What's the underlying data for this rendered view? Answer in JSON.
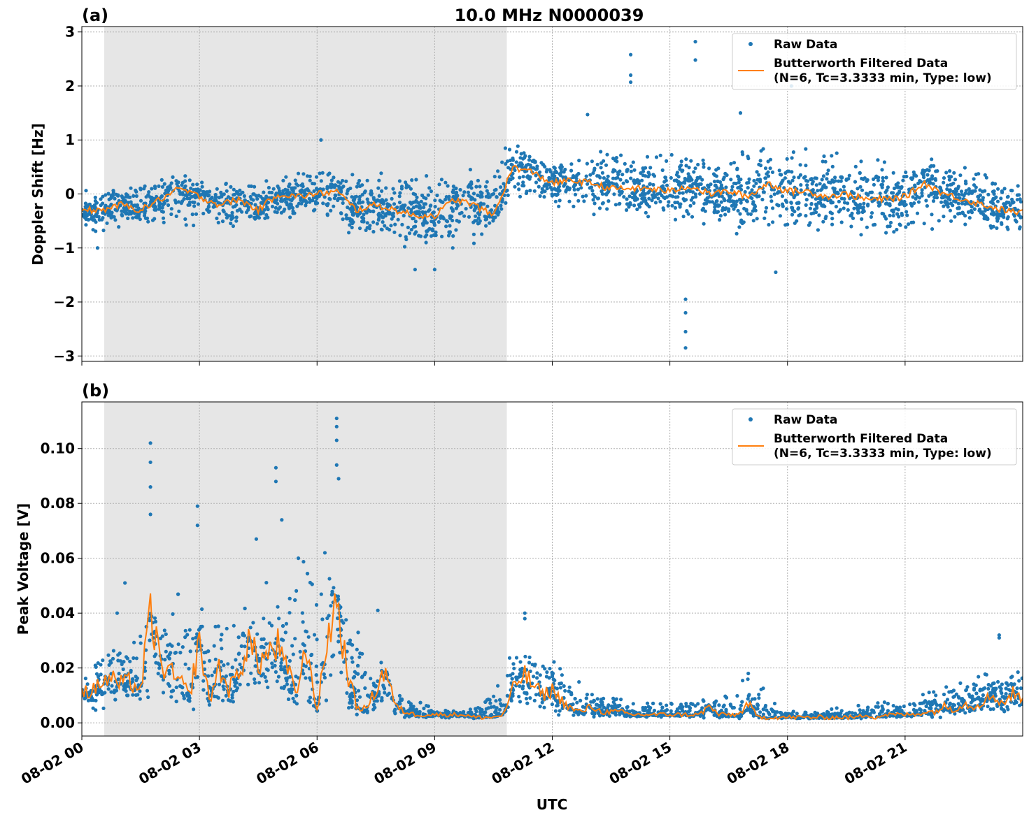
{
  "chart_data": [
    {
      "type": "scatter",
      "panel_label": "(a)",
      "title": "10.0 MHz N0000039",
      "xlabel": "",
      "ylabel": "Doppler Shift [Hz]",
      "ylim": [
        -3.1,
        3.1
      ],
      "yticks": [
        -3,
        -2,
        -1,
        0,
        1,
        2,
        3
      ],
      "ytick_labels": [
        "−3",
        "−2",
        "−1",
        "0",
        "1",
        "2",
        "3"
      ],
      "xlim_hours": [
        0,
        24
      ],
      "grid": true,
      "legend_position": "top-right",
      "shaded_interval_utc": [
        "08-02 00:34",
        "08-02 10:50"
      ],
      "shaded_interval_hours": [
        0.57,
        10.84
      ],
      "colors": {
        "raw": "#1f77b4",
        "filtered": "#ff7f0e",
        "shade": "#e6e6e6"
      },
      "legend": {
        "raw": "Raw Data",
        "filtered_line1": "Butterworth Filtered Data",
        "filtered_line2": "(N=6, Tc=3.3333 min, Type: low)"
      },
      "filtered_step_hours": 0.5,
      "filtered": [
        -0.3,
        -0.3,
        -0.2,
        -0.3,
        -0.1,
        0.1,
        -0.05,
        -0.2,
        -0.1,
        -0.3,
        0.0,
        -0.05,
        0.0,
        0.05,
        -0.3,
        -0.2,
        -0.3,
        -0.4,
        -0.4,
        -0.1,
        -0.2,
        -0.4,
        0.5,
        0.4,
        0.2,
        0.25,
        0.2,
        0.1,
        0.1,
        0.1,
        0.05,
        0.15,
        0.0,
        0.05,
        -0.05,
        0.2,
        0.05,
        0.05,
        -0.05,
        0.0,
        -0.1,
        -0.1,
        -0.05,
        0.2,
        0.0,
        -0.1,
        -0.2,
        -0.3,
        -0.35
      ],
      "raw_envelope_step_hours": 1,
      "raw_low": [
        -0.7,
        -0.7,
        -0.6,
        -0.6,
        -0.7,
        -0.6,
        -0.4,
        -0.9,
        -1.0,
        -1.1,
        -1.0,
        -0.3,
        -0.2,
        -0.4,
        -0.5,
        -0.6,
        -0.6,
        -0.8,
        -0.8,
        -0.7,
        -0.8,
        -0.8,
        -0.6,
        -0.7,
        -0.8
      ],
      "raw_high": [
        0.1,
        0.2,
        0.4,
        0.4,
        0.2,
        0.3,
        0.5,
        0.4,
        0.4,
        0.4,
        0.5,
        1.0,
        0.6,
        0.8,
        0.8,
        0.8,
        0.8,
        0.9,
        0.9,
        0.8,
        0.8,
        0.8,
        0.6,
        0.5,
        0.3
      ],
      "raw_outliers": [
        [
          14.0,
          2.58
        ],
        [
          14.0,
          2.2
        ],
        [
          14.0,
          2.07
        ],
        [
          15.65,
          2.82
        ],
        [
          15.65,
          2.48
        ],
        [
          15.4,
          -2.85
        ],
        [
          15.4,
          -2.55
        ],
        [
          15.4,
          -1.95
        ],
        [
          15.4,
          -2.2
        ],
        [
          18.1,
          2.0
        ],
        [
          6.1,
          1.0
        ],
        [
          17.7,
          -1.45
        ],
        [
          8.5,
          -1.4
        ],
        [
          9.0,
          -1.4
        ],
        [
          0.4,
          -1.0
        ],
        [
          12.9,
          1.47
        ],
        [
          16.8,
          1.5
        ]
      ]
    },
    {
      "type": "scatter",
      "panel_label": "(b)",
      "xlabel": "UTC",
      "ylabel": "Peak Voltage [V]",
      "ylim": [
        -0.0048,
        0.117
      ],
      "yticks": [
        0,
        0.02,
        0.04,
        0.06,
        0.08,
        0.1
      ],
      "ytick_labels": [
        "0.00",
        "0.02",
        "0.04",
        "0.06",
        "0.08",
        "0.10"
      ],
      "xlim_hours": [
        0,
        24
      ],
      "xticks_hours": [
        0,
        3,
        6,
        9,
        12,
        15,
        18,
        21
      ],
      "xtick_labels": [
        "08-02 00",
        "08-02 03",
        "08-02 06",
        "08-02 09",
        "08-02 12",
        "08-02 15",
        "08-02 18",
        "08-02 21"
      ],
      "grid": true,
      "legend_position": "top-right",
      "shaded_interval_hours": [
        0.57,
        10.84
      ],
      "legend": {
        "raw": "Raw Data",
        "filtered_line1": "Butterworth Filtered Data",
        "filtered_line2": "(N=6, Tc=3.3333 min, Type: low)"
      },
      "filtered_step_hours": 0.25,
      "filtered": [
        0.012,
        0.011,
        0.015,
        0.016,
        0.014,
        0.015,
        0.012,
        0.04,
        0.022,
        0.018,
        0.015,
        0.01,
        0.03,
        0.008,
        0.02,
        0.012,
        0.018,
        0.03,
        0.022,
        0.025,
        0.028,
        0.018,
        0.012,
        0.028,
        0.004,
        0.03,
        0.045,
        0.02,
        0.006,
        0.005,
        0.012,
        0.02,
        0.006,
        0.004,
        0.003,
        0.003,
        0.003,
        0.003,
        0.003,
        0.003,
        0.002,
        0.002,
        0.002,
        0.003,
        0.012,
        0.018,
        0.014,
        0.01,
        0.012,
        0.008,
        0.005,
        0.004,
        0.006,
        0.004,
        0.004,
        0.004,
        0.003,
        0.003,
        0.003,
        0.003,
        0.003,
        0.003,
        0.003,
        0.003,
        0.006,
        0.003,
        0.003,
        0.003,
        0.007,
        0.002,
        0.002,
        0.002,
        0.002,
        0.002,
        0.002,
        0.002,
        0.002,
        0.002,
        0.002,
        0.002,
        0.003,
        0.002,
        0.003,
        0.003,
        0.003,
        0.003,
        0.004,
        0.004,
        0.006,
        0.005,
        0.007,
        0.006,
        0.008,
        0.01,
        0.007,
        0.011,
        0.008
      ],
      "raw_envelope_step_hours": 1,
      "raw_low": [
        0.004,
        0.005,
        0.005,
        0.004,
        0.004,
        0.005,
        0.004,
        0.002,
        0.002,
        0.0015,
        0.0015,
        0.004,
        0.003,
        0.002,
        0.002,
        0.002,
        0.0015,
        0.0015,
        0.0015,
        0.0015,
        0.0015,
        0.002,
        0.002,
        0.003,
        0.004
      ],
      "raw_high": [
        0.026,
        0.032,
        0.045,
        0.05,
        0.04,
        0.058,
        0.065,
        0.04,
        0.012,
        0.005,
        0.005,
        0.03,
        0.026,
        0.012,
        0.008,
        0.007,
        0.01,
        0.018,
        0.005,
        0.005,
        0.007,
        0.01,
        0.015,
        0.02,
        0.022
      ],
      "raw_outliers": [
        [
          1.75,
          0.102
        ],
        [
          1.75,
          0.095
        ],
        [
          1.75,
          0.086
        ],
        [
          1.75,
          0.076
        ],
        [
          2.95,
          0.079
        ],
        [
          2.95,
          0.072
        ],
        [
          4.95,
          0.093
        ],
        [
          4.95,
          0.088
        ],
        [
          5.1,
          0.074
        ],
        [
          4.45,
          0.067
        ],
        [
          6.5,
          0.111
        ],
        [
          6.5,
          0.108
        ],
        [
          6.5,
          0.103
        ],
        [
          6.5,
          0.094
        ],
        [
          6.55,
          0.089
        ],
        [
          6.2,
          0.062
        ],
        [
          7.55,
          0.041
        ],
        [
          11.3,
          0.04
        ],
        [
          11.3,
          0.038
        ],
        [
          23.4,
          0.032
        ],
        [
          23.4,
          0.031
        ],
        [
          17.0,
          0.018
        ],
        [
          1.1,
          0.051
        ],
        [
          0.9,
          0.04
        ]
      ]
    }
  ]
}
